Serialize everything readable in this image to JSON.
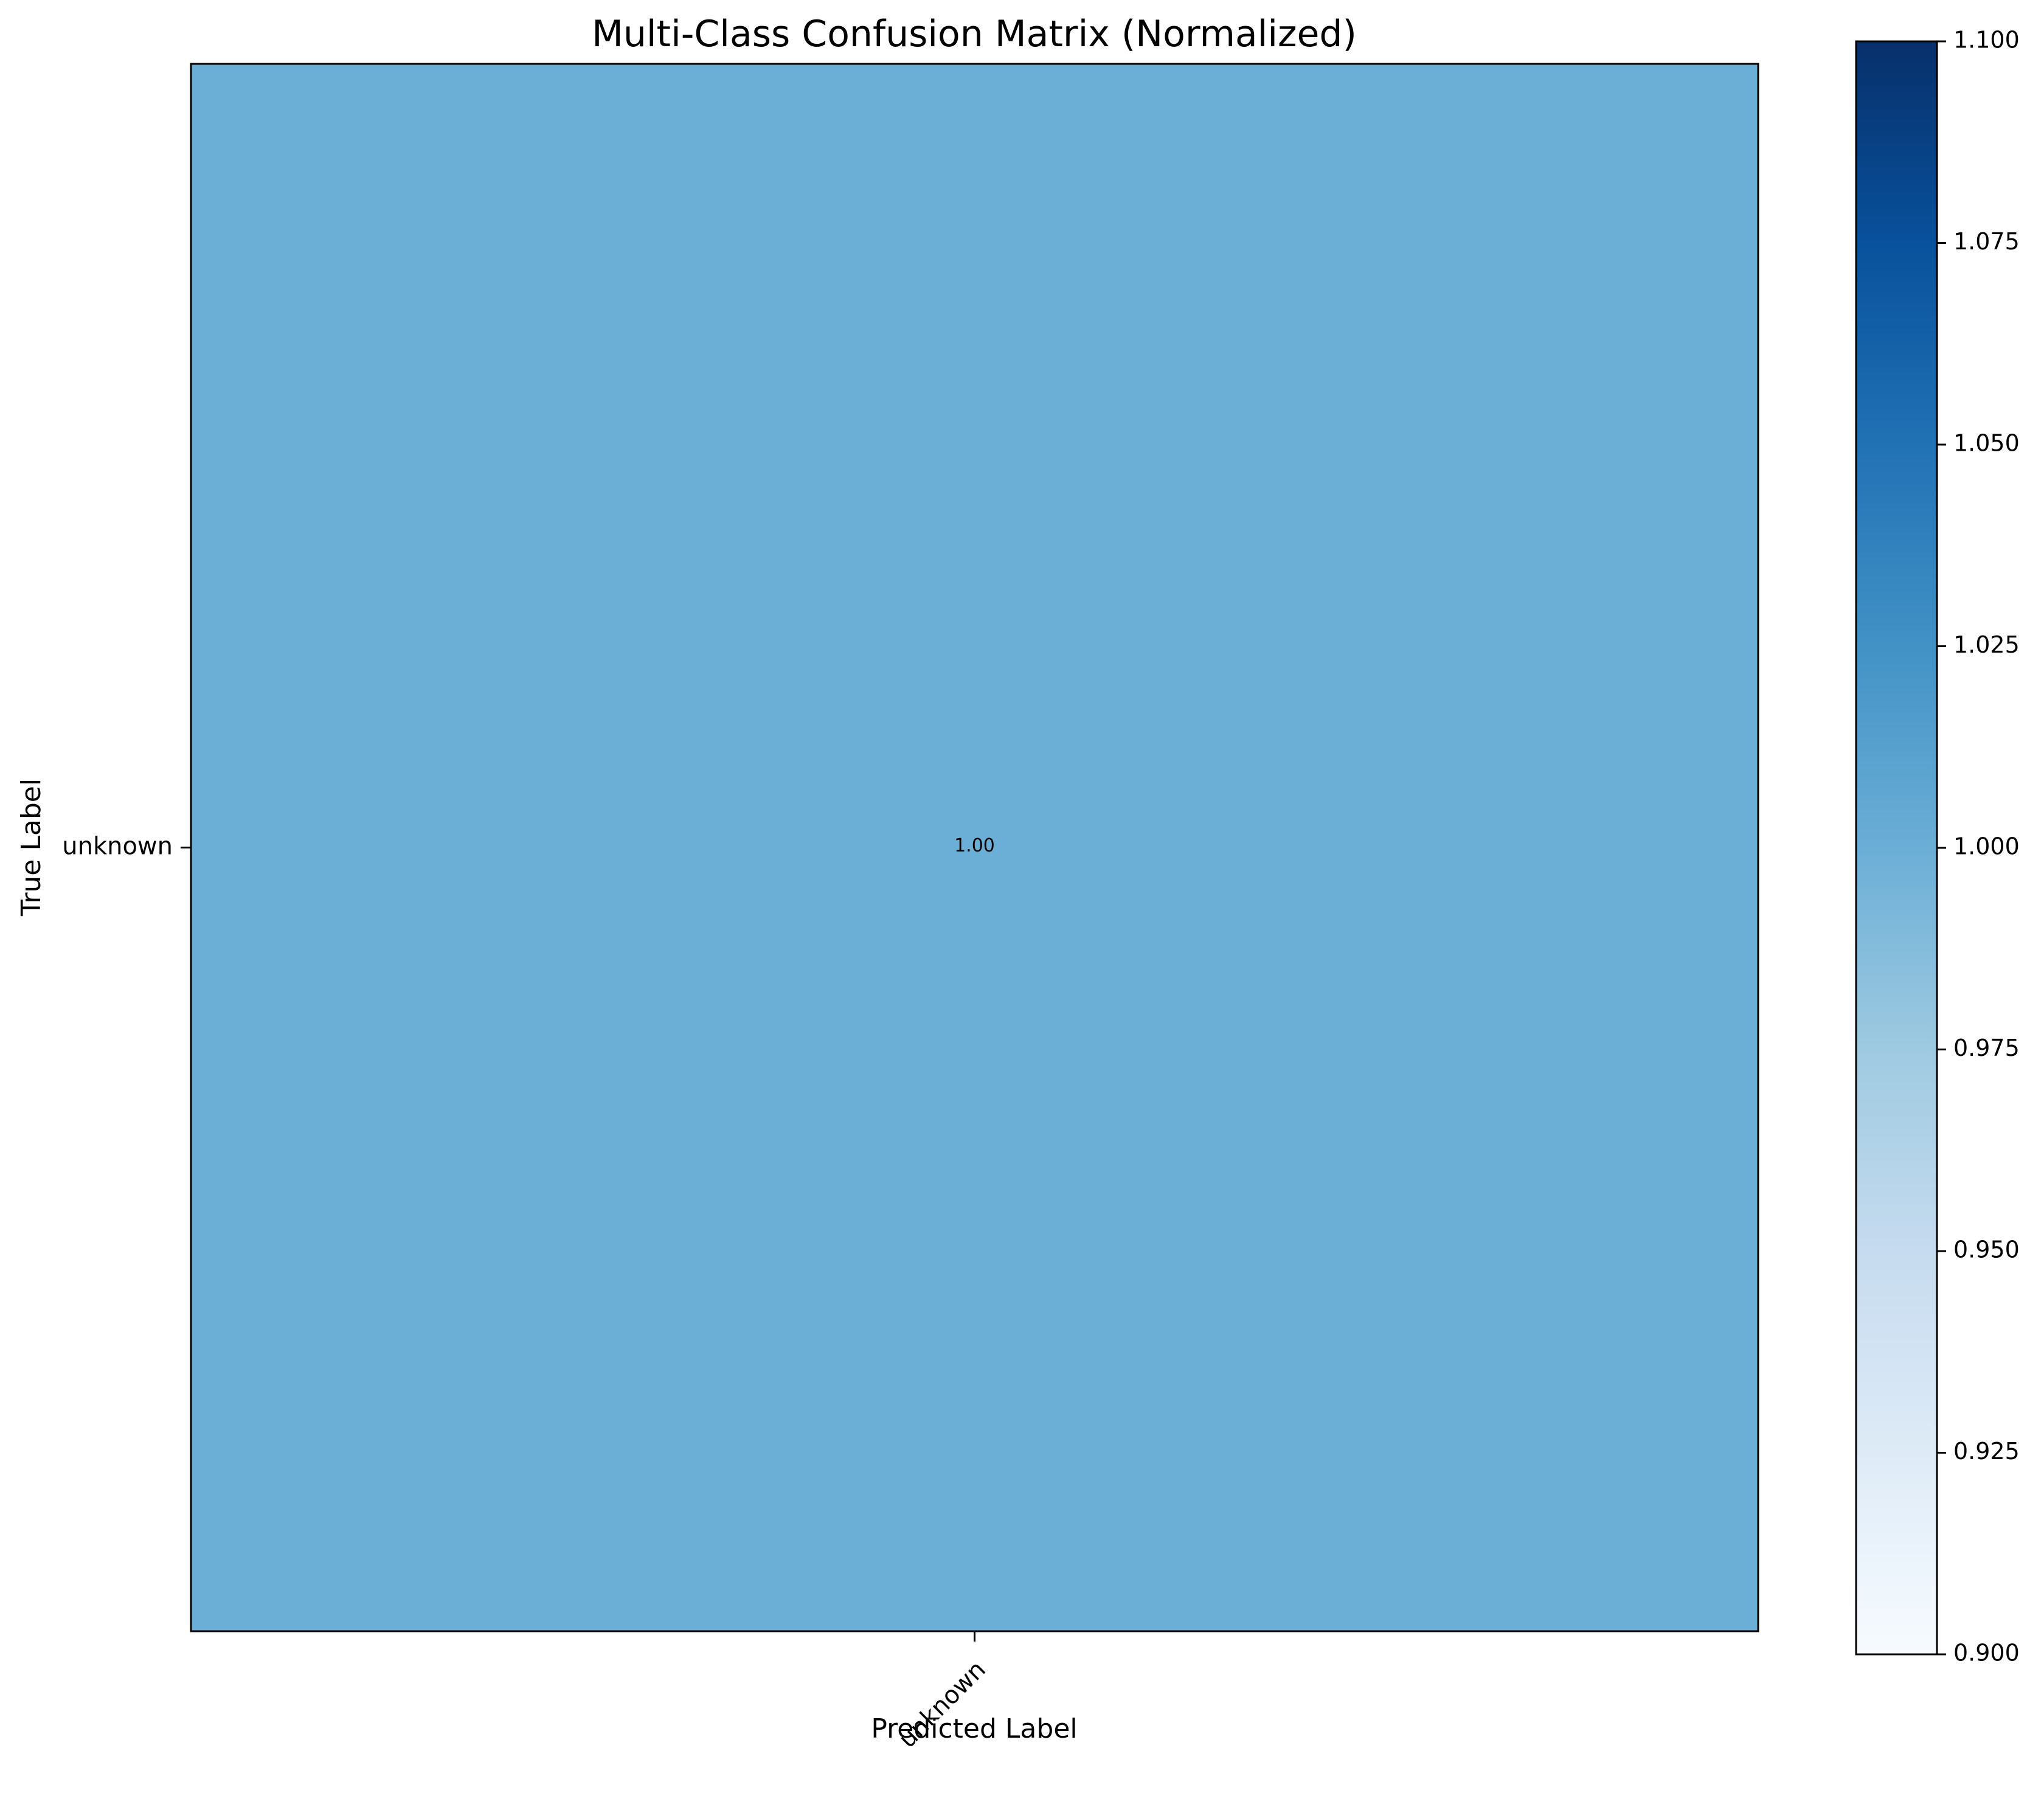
{
  "chart_data": {
    "type": "heatmap",
    "title": "Multi-Class Confusion Matrix (Normalized)",
    "xlabel": "Predicted Label",
    "ylabel": "True Label",
    "x_categories": [
      "unknown"
    ],
    "y_categories": [
      "unknown"
    ],
    "values": [
      [
        1.0
      ]
    ],
    "cell_labels": [
      [
        "1.00"
      ]
    ],
    "colormap": "Blues",
    "colorbar": {
      "range": [
        0.9,
        1.1
      ],
      "ticks": [
        0.9,
        0.925,
        0.95,
        0.975,
        1.0,
        1.025,
        1.05,
        1.075,
        1.1
      ],
      "tick_labels": [
        "0.900",
        "0.925",
        "0.950",
        "0.975",
        "1.000",
        "1.025",
        "1.050",
        "1.075",
        "1.100"
      ]
    },
    "grid": false
  },
  "colors": {
    "cell_fill": "#6baed6",
    "cell_text": "#ffffff",
    "axis": "#000000",
    "colormap_stops": [
      "#f7fbff",
      "#deebf7",
      "#c6dbef",
      "#9ecae1",
      "#6baed6",
      "#4292c6",
      "#2171b5",
      "#08519c",
      "#08306b"
    ]
  }
}
